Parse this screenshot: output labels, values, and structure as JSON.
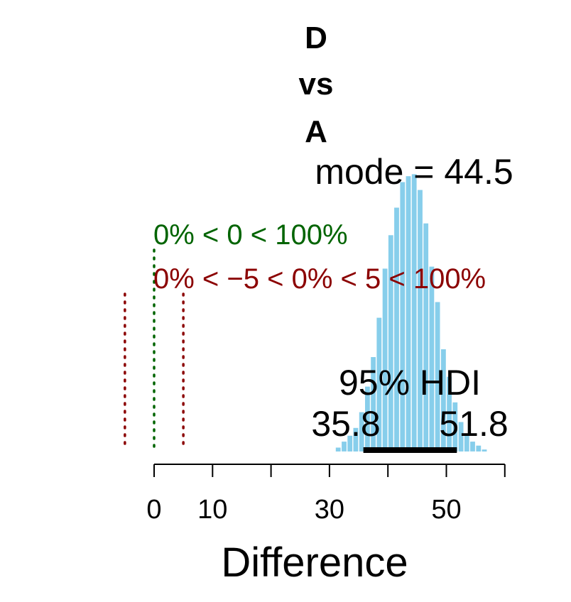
{
  "chart_data": {
    "type": "bar",
    "title_lines": [
      "D",
      "vs",
      "A"
    ],
    "xlabel": "Difference",
    "xlim": [
      0,
      60
    ],
    "x_ticks": [
      0,
      10,
      20,
      30,
      40,
      50,
      60
    ],
    "x_tick_labels": [
      "0",
      "10",
      "",
      "30",
      "",
      "50",
      ""
    ],
    "mode_label": "mode = 44.5",
    "comp_label": "0% < 0 < 100%",
    "rope_label": "0% < −5 < 0% < 5 < 100%",
    "hdi_label": "95% HDI",
    "hdi_low_label": "35.8",
    "hdi_high_label": "51.8",
    "hdi": [
      35.8,
      51.8
    ],
    "comp_value": 0,
    "rope": [
      -5,
      5
    ],
    "bar_color": "#87CEEB",
    "comp_color": "#006400",
    "rope_color": "#8B0000",
    "hdi_color": "#000000",
    "bins": [
      {
        "x": 31.5,
        "density": 0.002
      },
      {
        "x": 32.5,
        "density": 0.005
      },
      {
        "x": 33.5,
        "density": 0.008
      },
      {
        "x": 34.5,
        "density": 0.012
      },
      {
        "x": 35.5,
        "density": 0.02
      },
      {
        "x": 36.5,
        "density": 0.033
      },
      {
        "x": 37.5,
        "density": 0.048
      },
      {
        "x": 38.5,
        "density": 0.068
      },
      {
        "x": 39.5,
        "density": 0.093
      },
      {
        "x": 40.5,
        "density": 0.11
      },
      {
        "x": 41.5,
        "density": 0.124
      },
      {
        "x": 42.5,
        "density": 0.137
      },
      {
        "x": 43.5,
        "density": 0.14
      },
      {
        "x": 44.5,
        "density": 0.141
      },
      {
        "x": 45.5,
        "density": 0.133
      },
      {
        "x": 46.5,
        "density": 0.116
      },
      {
        "x": 47.5,
        "density": 0.094
      },
      {
        "x": 48.5,
        "density": 0.076
      },
      {
        "x": 49.5,
        "density": 0.052
      },
      {
        "x": 50.5,
        "density": 0.038
      },
      {
        "x": 51.5,
        "density": 0.025
      },
      {
        "x": 52.5,
        "density": 0.015
      },
      {
        "x": 53.5,
        "density": 0.009
      },
      {
        "x": 54.5,
        "density": 0.005
      },
      {
        "x": 55.5,
        "density": 0.003
      },
      {
        "x": 56.5,
        "density": 0.001
      }
    ]
  }
}
